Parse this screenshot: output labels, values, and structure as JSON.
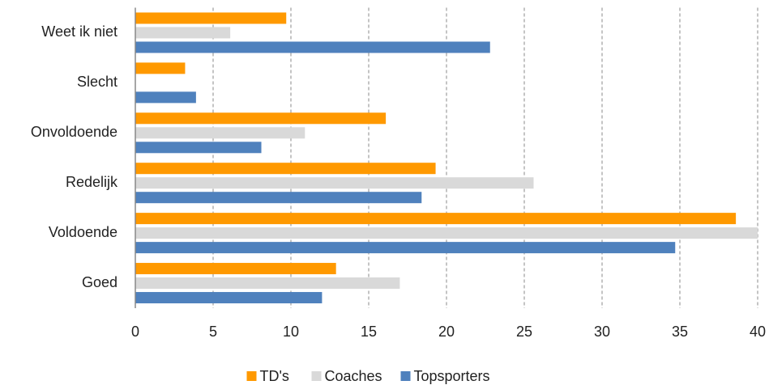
{
  "chart_data": {
    "type": "barh",
    "categories": [
      "Weet ik niet",
      "Slecht",
      "Onvoldoende",
      "Redelijk",
      "Voldoende",
      "Goed"
    ],
    "series": [
      {
        "name": "TD's",
        "color": "#ff9900",
        "values": [
          9.7,
          3.2,
          16.1,
          19.3,
          38.6,
          12.9
        ]
      },
      {
        "name": "Coaches",
        "color": "#d9d9d9",
        "values": [
          6.1,
          0,
          10.9,
          25.6,
          40.0,
          17.0
        ]
      },
      {
        "name": "Topsporters",
        "color": "#4f81bd",
        "values": [
          22.8,
          3.9,
          8.1,
          18.4,
          34.7,
          12.0
        ]
      }
    ],
    "xlim": [
      0,
      40
    ],
    "xticks": [
      0,
      5,
      10,
      15,
      20,
      25,
      30,
      35,
      40
    ],
    "grid": true,
    "legend": "bottom"
  }
}
